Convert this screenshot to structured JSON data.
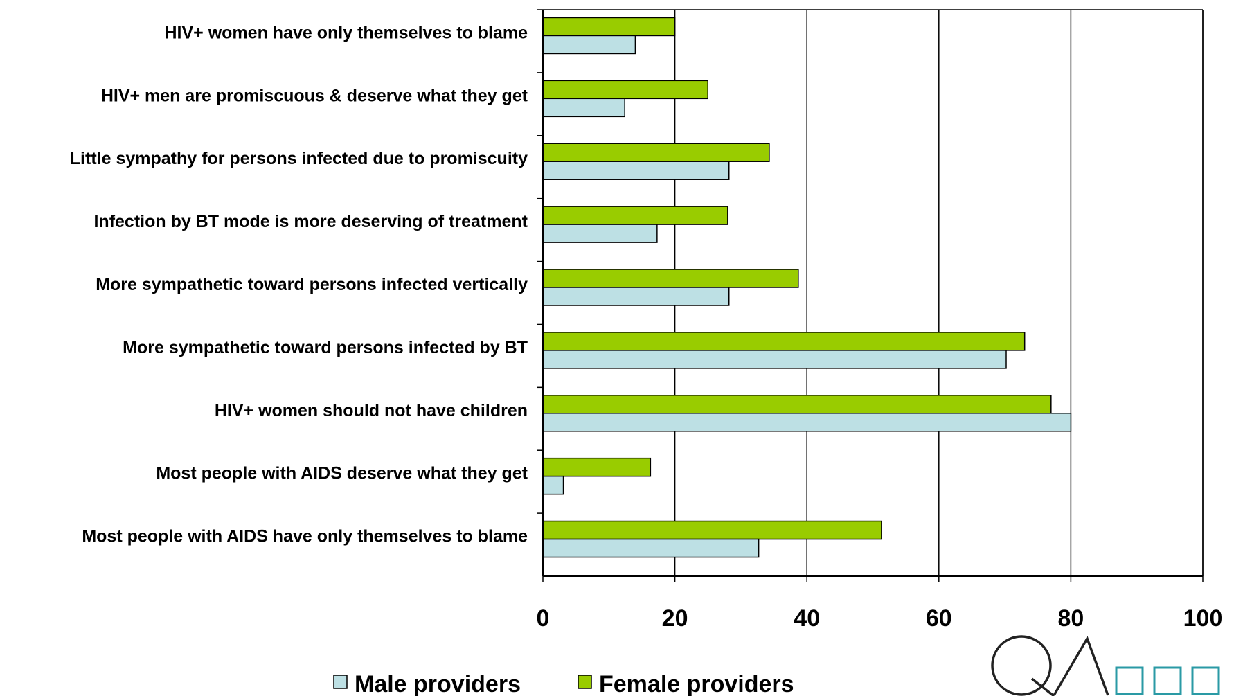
{
  "chart_data": {
    "type": "bar",
    "orientation": "horizontal",
    "title": "",
    "xlabel": "",
    "ylabel": "",
    "xlim": [
      0,
      100
    ],
    "x_ticks": [
      "0",
      "20",
      "40",
      "60",
      "80",
      "100"
    ],
    "grid": "vertical",
    "legend_position": "bottom",
    "categories": [
      "HIV+ women have only themselves to blame",
      "HIV+ men are promiscuous & deserve what they get",
      "Little sympathy for persons infected due to promiscuity",
      "Infection by BT mode is more deserving of treatment",
      "More sympathetic toward persons infected vertically",
      "More sympathetic toward persons infected by BT",
      "HIV+ women should not have children",
      "Most people with AIDS deserve what they get",
      "Most people with AIDS have only themselves to blame"
    ],
    "series": [
      {
        "name": "Female providers",
        "color": "#99cc00",
        "values": [
          20,
          25,
          34.3,
          28,
          38.7,
          73,
          77,
          16.3,
          51.3
        ]
      },
      {
        "name": "Male providers",
        "color": "#bde0e4",
        "values": [
          14,
          12.4,
          28.2,
          17.3,
          28.2,
          70.2,
          80,
          3.1,
          32.7
        ]
      }
    ],
    "legend": [
      {
        "name": "Male providers",
        "color": "#bde0e4"
      },
      {
        "name": "Female providers",
        "color": "#99cc00"
      }
    ]
  },
  "logo": {
    "text": "QA",
    "icon": "qa-logo-with-squares"
  }
}
